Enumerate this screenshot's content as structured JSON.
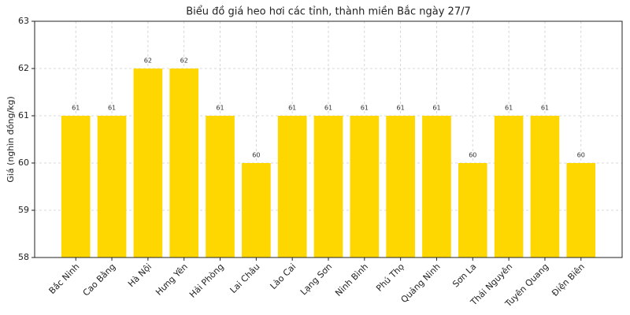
{
  "chart_data": {
    "type": "bar",
    "title": "Biểu đồ giá heo hơi các tỉnh, thành miền Bắc ngày 27/7",
    "y_label": "Giá (nghìn đồng/kg)",
    "categories": [
      "Bắc Ninh",
      "Cao Bằng",
      "Hà Nội",
      "Hưng Yên",
      "Hải Phòng",
      "Lai Châu",
      "Lào Cai",
      "Lạng Sơn",
      "Ninh Bình",
      "Phú Thọ",
      "Quảng Ninh",
      "Sơn La",
      "Thái Nguyên",
      "Tuyên Quang",
      "Điện Biên"
    ],
    "values": [
      61,
      61,
      62,
      62,
      61,
      60,
      61,
      61,
      61,
      61,
      61,
      60,
      61,
      61,
      60
    ],
    "color": "#ffd700",
    "ylim": [
      58,
      63
    ],
    "yticks": [
      58,
      59,
      60,
      61,
      62,
      63
    ],
    "grid": true
  }
}
